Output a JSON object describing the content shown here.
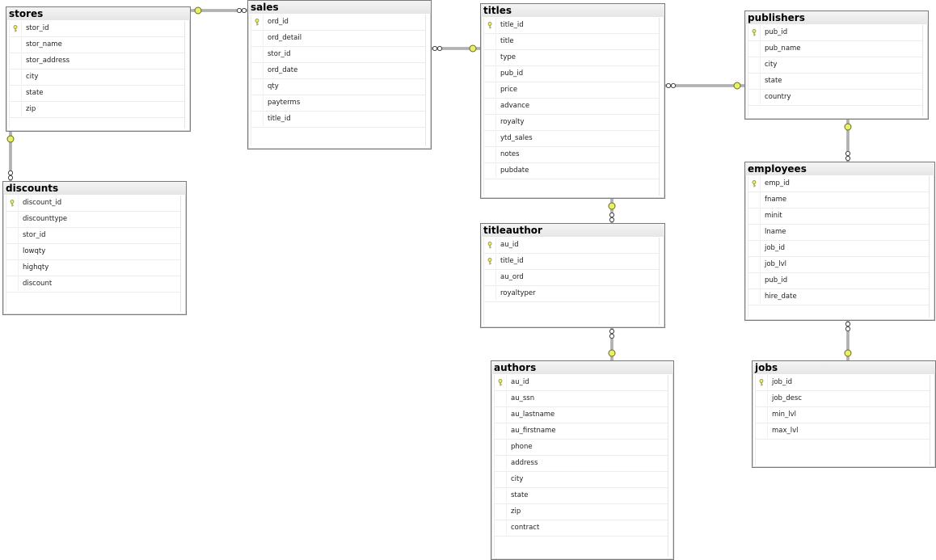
{
  "diagram": {
    "tables": [
      {
        "name": "stores",
        "columns": [
          {
            "name": "stor_id",
            "pk": true
          },
          {
            "name": "stor_name"
          },
          {
            "name": "stor_address"
          },
          {
            "name": "city"
          },
          {
            "name": "state"
          },
          {
            "name": "zip"
          }
        ]
      },
      {
        "name": "sales",
        "columns": [
          {
            "name": "ord_id",
            "pk": true
          },
          {
            "name": "ord_detail"
          },
          {
            "name": "stor_id"
          },
          {
            "name": "ord_date"
          },
          {
            "name": "qty"
          },
          {
            "name": "payterms"
          },
          {
            "name": "title_id"
          }
        ]
      },
      {
        "name": "titles",
        "columns": [
          {
            "name": "title_id",
            "pk": true
          },
          {
            "name": "title"
          },
          {
            "name": "type"
          },
          {
            "name": "pub_id"
          },
          {
            "name": "price"
          },
          {
            "name": "advance"
          },
          {
            "name": "royalty"
          },
          {
            "name": "ytd_sales"
          },
          {
            "name": "notes"
          },
          {
            "name": "pubdate"
          }
        ]
      },
      {
        "name": "publishers",
        "columns": [
          {
            "name": "pub_id",
            "pk": true
          },
          {
            "name": "pub_name"
          },
          {
            "name": "city"
          },
          {
            "name": "state"
          },
          {
            "name": "country"
          }
        ]
      },
      {
        "name": "discounts",
        "columns": [
          {
            "name": "discount_id",
            "pk": true
          },
          {
            "name": "discounttype"
          },
          {
            "name": "stor_id"
          },
          {
            "name": "lowqty"
          },
          {
            "name": "highqty"
          },
          {
            "name": "discount"
          }
        ]
      },
      {
        "name": "employees",
        "columns": [
          {
            "name": "emp_id",
            "pk": true
          },
          {
            "name": "fname"
          },
          {
            "name": "minit"
          },
          {
            "name": "lname"
          },
          {
            "name": "job_id"
          },
          {
            "name": "job_lvl"
          },
          {
            "name": "pub_id"
          },
          {
            "name": "hire_date"
          }
        ]
      },
      {
        "name": "titleauthor",
        "columns": [
          {
            "name": "au_id",
            "pk": true
          },
          {
            "name": "title_id",
            "pk": true
          },
          {
            "name": "au_ord"
          },
          {
            "name": "royaltyper"
          }
        ]
      },
      {
        "name": "authors",
        "columns": [
          {
            "name": "au_id",
            "pk": true
          },
          {
            "name": "au_ssn"
          },
          {
            "name": "au_lastname"
          },
          {
            "name": "au_firstname"
          },
          {
            "name": "phone"
          },
          {
            "name": "address"
          },
          {
            "name": "city"
          },
          {
            "name": "state"
          },
          {
            "name": "zip"
          },
          {
            "name": "contract"
          }
        ]
      },
      {
        "name": "jobs",
        "columns": [
          {
            "name": "job_id",
            "pk": true
          },
          {
            "name": "job_desc"
          },
          {
            "name": "min_lvl"
          },
          {
            "name": "max_lvl"
          }
        ]
      }
    ],
    "relationships": [
      {
        "one": "stores",
        "many": "sales"
      },
      {
        "one": "stores",
        "many": "discounts"
      },
      {
        "one": "titles",
        "many": "sales"
      },
      {
        "one": "publishers",
        "many": "titles"
      },
      {
        "one": "publishers",
        "many": "employees"
      },
      {
        "one": "titles",
        "many": "titleauthor"
      },
      {
        "one": "authors",
        "many": "titleauthor"
      },
      {
        "one": "jobs",
        "many": "employees"
      }
    ],
    "colors": {
      "key": "#e8f06a",
      "border": "#7a7a7a",
      "line": "#8a8a8a"
    }
  }
}
